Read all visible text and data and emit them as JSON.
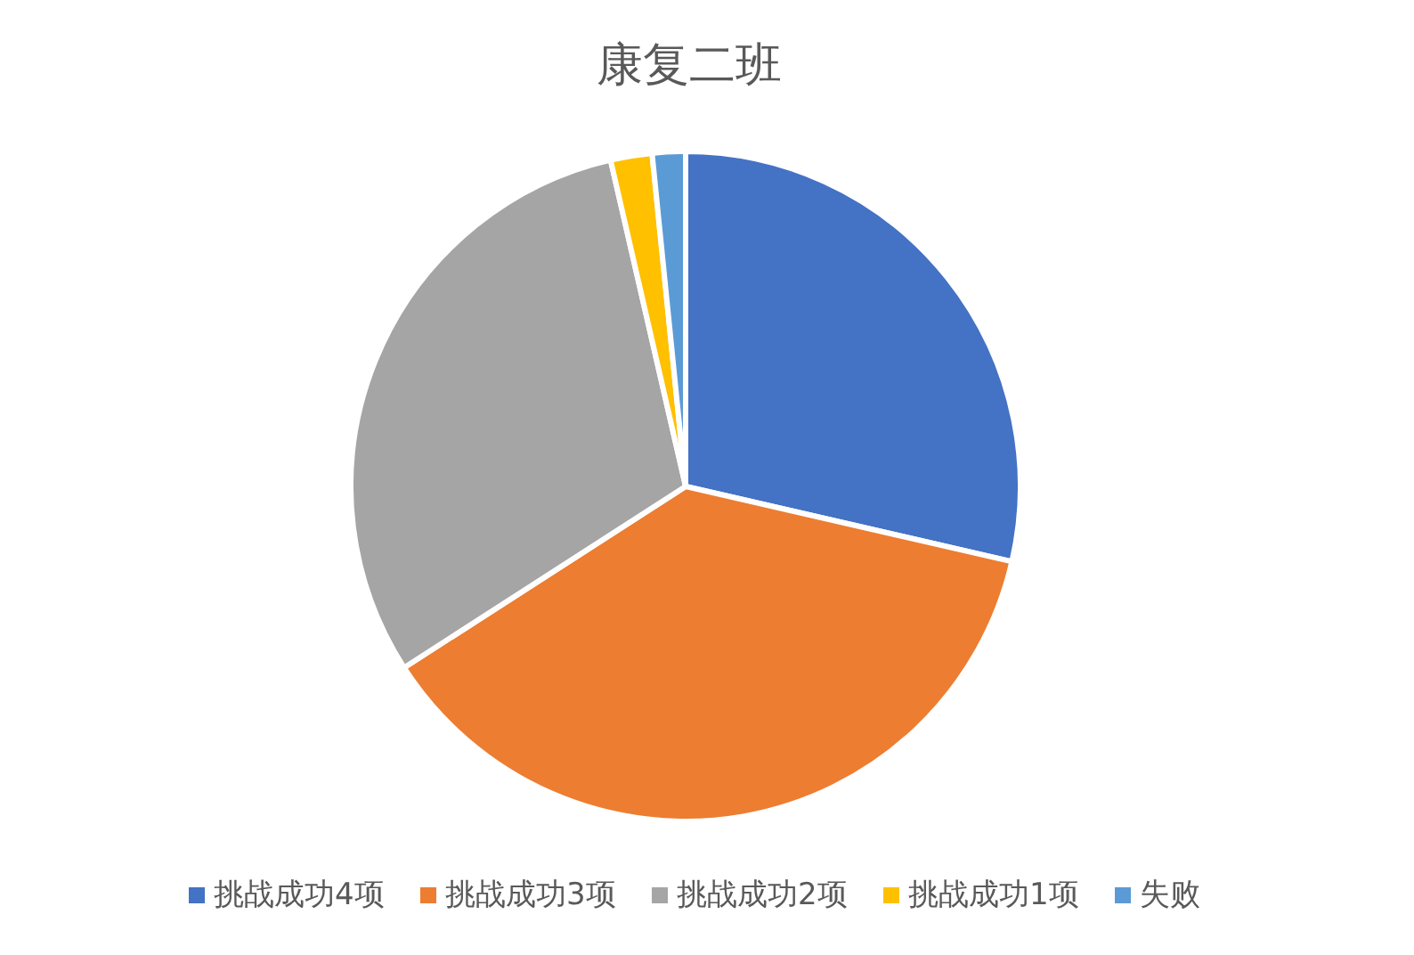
{
  "chart_data": {
    "type": "pie",
    "title": "康复二班",
    "categories": [
      "挑战成功4项",
      "挑战成功3项",
      "挑战成功2项",
      "挑战成功1项",
      "失败"
    ],
    "values": [
      28.6,
      37.3,
      30.5,
      2.0,
      1.6
    ],
    "colors": [
      "#4472c4",
      "#ed7d31",
      "#a5a5a5",
      "#ffc000",
      "#5b9bd5"
    ],
    "legend": "bottom"
  }
}
